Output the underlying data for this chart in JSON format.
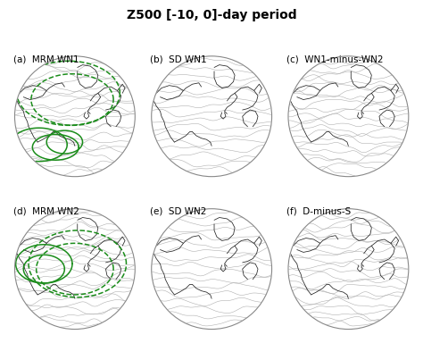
{
  "title": "Z500 [-10, 0]-day period",
  "title_fontsize": 10,
  "panel_labels": [
    "(a)  MRM WN1",
    "(b)  SD WN1",
    "(c)  WN1-minus-WN2",
    "(d)  MRM WN2",
    "(e)  SD WN2",
    "(f)  D-minus-S"
  ],
  "label_fontsize": 7.5,
  "nrows": 2,
  "ncols": 3,
  "bg_color": "#ffffff",
  "contour_color": "#b0b0b0",
  "contour_lw": 0.4,
  "coast_color": "#222222",
  "coast_lw": 0.55,
  "globe_edge_color": "#888888",
  "globe_edge_lw": 0.8,
  "green_solid_color": "#1a8c1a",
  "green_dashed_color": "#1a8c1a",
  "green_lw": 1.1,
  "blue_light": "#a8cfe8",
  "blue_mid": "#6baed6",
  "blue_dark": "#2171b5",
  "orange_light": "#fdd9b0",
  "orange_mid": "#fdae6b",
  "orange_dark": "#d94801",
  "beige": "#fde8c8"
}
